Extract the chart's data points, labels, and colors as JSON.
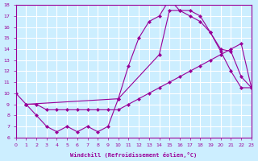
{
  "xlabel": "Windchill (Refroidissement éolien,°C)",
  "xlim": [
    0,
    23
  ],
  "ylim": [
    6,
    18
  ],
  "xticks": [
    0,
    1,
    2,
    3,
    4,
    5,
    6,
    7,
    8,
    9,
    10,
    11,
    12,
    13,
    14,
    15,
    16,
    17,
    18,
    19,
    20,
    21,
    22,
    23
  ],
  "yticks": [
    6,
    7,
    8,
    9,
    10,
    11,
    12,
    13,
    14,
    15,
    16,
    17,
    18
  ],
  "bg_color": "#cceeff",
  "line_color": "#990099",
  "grid_color": "#ffffff",
  "curve1_x": [
    1,
    2,
    3,
    4,
    5,
    6,
    7,
    8,
    9,
    10,
    11,
    12,
    13,
    14,
    15,
    16,
    17,
    18,
    19,
    20,
    21,
    22,
    23
  ],
  "curve1_y": [
    9.0,
    8.0,
    7.0,
    6.5,
    7.0,
    6.5,
    7.0,
    6.5,
    7.0,
    9.5,
    12.5,
    15.0,
    16.5,
    17.0,
    18.5,
    17.5,
    17.5,
    17.0,
    15.5,
    14.0,
    13.8,
    11.5,
    10.5
  ],
  "curve2_x": [
    1,
    10,
    14,
    15,
    16,
    17,
    18,
    19,
    20,
    21,
    22,
    23
  ],
  "curve2_y": [
    9.0,
    9.5,
    13.5,
    17.5,
    17.5,
    17.0,
    16.5,
    15.5,
    13.8,
    12.0,
    10.5,
    10.5
  ],
  "curve3_x": [
    0,
    1,
    2,
    3,
    4,
    5,
    6,
    7,
    8,
    9,
    10,
    11,
    12,
    13,
    14,
    15,
    16,
    17,
    18,
    19,
    20,
    21,
    22,
    23
  ],
  "curve3_y": [
    10.0,
    9.0,
    9.0,
    8.5,
    8.5,
    8.5,
    8.5,
    8.5,
    8.5,
    8.5,
    8.5,
    9.0,
    9.5,
    10.0,
    10.5,
    11.0,
    11.5,
    12.0,
    12.5,
    13.0,
    13.5,
    14.0,
    14.5,
    10.5
  ]
}
